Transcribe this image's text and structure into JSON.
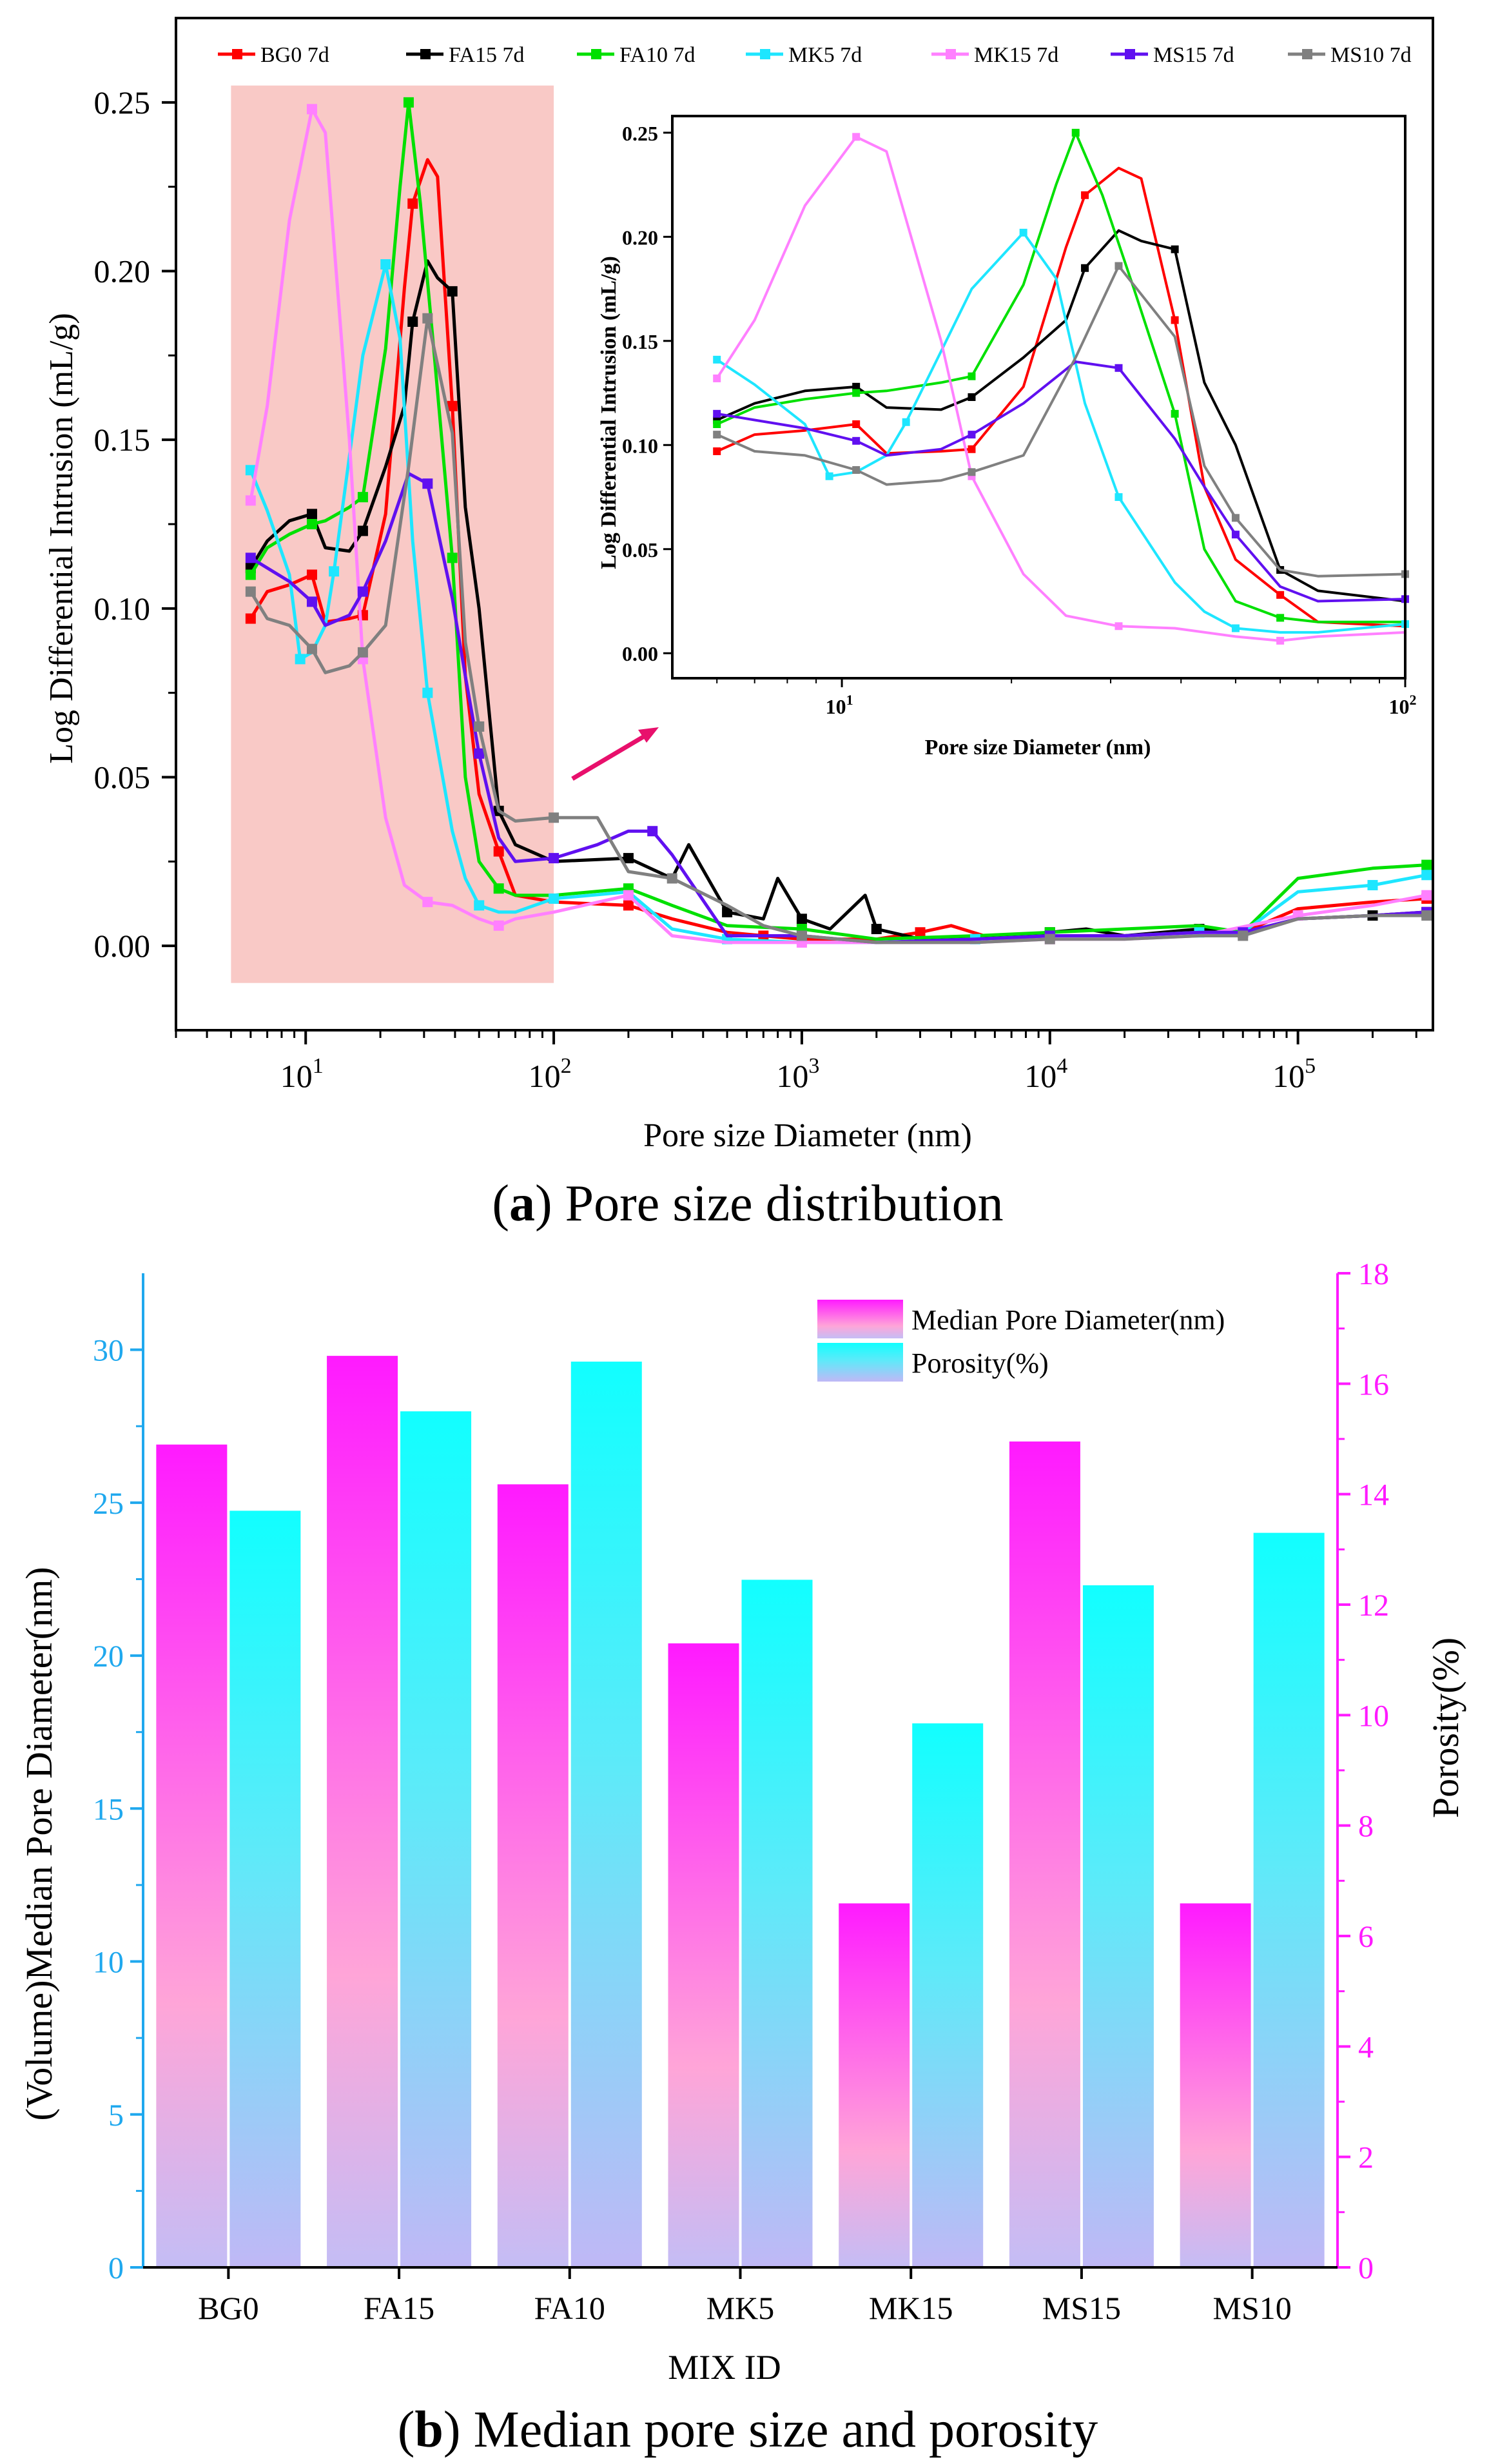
{
  "chart_data": [
    {
      "type": "line",
      "title": "(a) Pore size distribution",
      "caption_letter": "a",
      "caption_text": "Pore size distribution",
      "xlabel": "Pore size Diameter (nm)",
      "ylabel": "Log Differential Intrusion (mL/g)",
      "xscale": "log",
      "xlim": [
        3,
        350000
      ],
      "ylim": [
        -0.025,
        0.275
      ],
      "yticks": [
        "0.00",
        "0.05",
        "0.10",
        "0.15",
        "0.20",
        "0.25"
      ],
      "xticks": [
        {
          "base": "10",
          "exp": "1"
        },
        {
          "base": "10",
          "exp": "2"
        },
        {
          "base": "10",
          "exp": "3"
        },
        {
          "base": "10",
          "exp": "4"
        },
        {
          "base": "10",
          "exp": "5"
        }
      ],
      "highlight_range": {
        "x": [
          5,
          100
        ],
        "y": [
          -0.011,
          0.255
        ]
      },
      "legend": "top",
      "series": [
        {
          "name": "BG0 7d",
          "color": "#ff0000",
          "x": [
            6,
            7,
            8.6,
            10.6,
            12,
            15,
            17,
            21,
            25,
            27,
            31,
            34,
            39,
            44,
            50,
            60,
            70,
            100,
            200,
            300,
            500,
            700,
            1000,
            2000,
            3000,
            4000,
            6000,
            10000,
            20000,
            40000,
            60000,
            100000,
            200000,
            330000
          ],
          "y": [
            0.097,
            0.105,
            0.107,
            0.11,
            0.096,
            0.097,
            0.098,
            0.128,
            0.195,
            0.22,
            0.233,
            0.228,
            0.16,
            0.08,
            0.045,
            0.028,
            0.015,
            0.013,
            0.012,
            0.008,
            0.004,
            0.003,
            0.002,
            0.002,
            0.004,
            0.006,
            0.002,
            0.003,
            0.003,
            0.004,
            0.004,
            0.011,
            0.013,
            0.014
          ]
        },
        {
          "name": "FA15 7d",
          "color": "#000000",
          "x": [
            6,
            7,
            8.6,
            10.6,
            12,
            15,
            17,
            21,
            25,
            27,
            31,
            34,
            39,
            44,
            50,
            60,
            70,
            100,
            200,
            300,
            350,
            500,
            700,
            800,
            1000,
            1300,
            1800,
            2000,
            3000,
            5000,
            10000,
            14000,
            20000,
            40000,
            60000,
            100000,
            200000,
            330000
          ],
          "y": [
            0.112,
            0.12,
            0.126,
            0.128,
            0.118,
            0.117,
            0.123,
            0.142,
            0.16,
            0.185,
            0.203,
            0.198,
            0.194,
            0.13,
            0.1,
            0.04,
            0.03,
            0.025,
            0.026,
            0.02,
            0.03,
            0.01,
            0.008,
            0.02,
            0.008,
            0.005,
            0.015,
            0.005,
            0.002,
            0.002,
            0.004,
            0.005,
            0.003,
            0.005,
            0.004,
            0.008,
            0.009,
            0.01
          ]
        },
        {
          "name": "FA10 7d",
          "color": "#00e000",
          "x": [
            6,
            7,
            8.6,
            10.6,
            12,
            15,
            17,
            21,
            24,
            26,
            29,
            33,
            39,
            44,
            50,
            60,
            70,
            100,
            200,
            300,
            500,
            1000,
            2000,
            5000,
            10000,
            20000,
            40000,
            60000,
            100000,
            200000,
            330000
          ],
          "y": [
            0.11,
            0.118,
            0.122,
            0.125,
            0.126,
            0.13,
            0.133,
            0.177,
            0.225,
            0.25,
            0.22,
            0.175,
            0.115,
            0.05,
            0.025,
            0.017,
            0.015,
            0.015,
            0.017,
            0.012,
            0.006,
            0.005,
            0.002,
            0.003,
            0.004,
            0.005,
            0.006,
            0.004,
            0.02,
            0.023,
            0.024
          ]
        },
        {
          "name": "MK5 7d",
          "color": "#1ee6ff",
          "x": [
            6,
            7,
            8.6,
            9.5,
            10.6,
            12,
            13,
            15,
            17,
            21,
            24,
            27,
            31,
            39,
            44,
            50,
            60,
            70,
            100,
            200,
            300,
            500,
            1000,
            2000,
            5000,
            10000,
            20000,
            40000,
            60000,
            100000,
            200000,
            330000
          ],
          "y": [
            0.141,
            0.129,
            0.11,
            0.085,
            0.087,
            0.095,
            0.111,
            0.145,
            0.175,
            0.202,
            0.18,
            0.12,
            0.075,
            0.034,
            0.02,
            0.012,
            0.01,
            0.01,
            0.014,
            0.016,
            0.005,
            0.002,
            0.001,
            0.001,
            0.002,
            0.003,
            0.003,
            0.004,
            0.004,
            0.016,
            0.018,
            0.021
          ]
        },
        {
          "name": "MK15 7d",
          "color": "#ff80ff",
          "x": [
            6,
            7,
            8.6,
            10.6,
            12,
            15,
            17,
            21,
            25,
            31,
            39,
            50,
            60,
            70,
            100,
            200,
            300,
            500,
            1000,
            2000,
            5000,
            10000,
            20000,
            40000,
            100000,
            200000,
            330000
          ],
          "y": [
            0.132,
            0.16,
            0.215,
            0.248,
            0.241,
            0.15,
            0.085,
            0.038,
            0.018,
            0.013,
            0.012,
            0.008,
            0.006,
            0.008,
            0.01,
            0.015,
            0.003,
            0.001,
            0.001,
            0.001,
            0.001,
            0.002,
            0.002,
            0.003,
            0.009,
            0.012,
            0.015
          ]
        },
        {
          "name": "MS15 7d",
          "color": "#6010f0",
          "x": [
            6,
            7,
            8.6,
            10.6,
            12,
            15,
            17,
            21,
            26,
            31,
            39,
            44,
            50,
            60,
            70,
            100,
            150,
            200,
            250,
            300,
            500,
            1000,
            2000,
            5000,
            10000,
            20000,
            40000,
            60000,
            100000,
            200000,
            330000
          ],
          "y": [
            0.115,
            0.112,
            0.108,
            0.102,
            0.095,
            0.098,
            0.105,
            0.12,
            0.14,
            0.137,
            0.103,
            0.08,
            0.057,
            0.032,
            0.025,
            0.026,
            0.03,
            0.034,
            0.034,
            0.027,
            0.003,
            0.003,
            0.001,
            0.002,
            0.003,
            0.003,
            0.004,
            0.004,
            0.008,
            0.009,
            0.01
          ]
        },
        {
          "name": "MS10 7d",
          "color": "#808080",
          "x": [
            6,
            7,
            8.6,
            10.6,
            12,
            15,
            17,
            21,
            26,
            31,
            39,
            44,
            50,
            60,
            70,
            100,
            150,
            200,
            300,
            500,
            700,
            1000,
            2000,
            5000,
            10000,
            20000,
            40000,
            60000,
            100000,
            200000,
            330000
          ],
          "y": [
            0.105,
            0.097,
            0.095,
            0.088,
            0.081,
            0.083,
            0.087,
            0.095,
            0.142,
            0.186,
            0.152,
            0.09,
            0.065,
            0.04,
            0.037,
            0.038,
            0.038,
            0.022,
            0.02,
            0.012,
            0.006,
            0.003,
            0.001,
            0.001,
            0.002,
            0.002,
            0.003,
            0.003,
            0.008,
            0.009,
            0.009
          ]
        }
      ],
      "inset": {
        "xlabel": "Pore size Diameter (nm)",
        "ylabel": "Log Differential Intrusion (mL/g)",
        "xlim": [
          5,
          100
        ],
        "ylim": [
          -0.012,
          0.258
        ],
        "yticks": [
          "0.00",
          "0.05",
          "0.10",
          "0.15",
          "0.20",
          "0.25"
        ],
        "xticks": [
          {
            "base": "10",
            "exp": "1"
          },
          {
            "base": "10",
            "exp": "2"
          }
        ]
      }
    },
    {
      "type": "bar",
      "title": "(b) Median pore size and porosity",
      "caption_letter": "b",
      "caption_text": "Median pore size and porosity",
      "xlabel": "MIX ID",
      "ylabel_left": "(Volume)Median Pore Diameter(nm)",
      "ylabel_right": "Porosity(%)",
      "categories": [
        "BG0",
        "FA15",
        "FA10",
        "MK5",
        "MK15",
        "MS15",
        "MS10"
      ],
      "ylim_left": [
        0,
        32.5
      ],
      "ylim_right": [
        0,
        18
      ],
      "yticks_left": [
        "0",
        "5",
        "10",
        "15",
        "20",
        "25",
        "30"
      ],
      "yticks_right": [
        "0",
        "2",
        "4",
        "6",
        "8",
        "10",
        "12",
        "14",
        "16",
        "18"
      ],
      "left_axis_color": "#1fa8ee",
      "right_axis_color": "#ff1aff",
      "legend": "top-right",
      "series": [
        {
          "name": "Median Pore Diameter(nm)",
          "axis": "left",
          "color_top": "#ff1aff",
          "color_bottom": "#c4bdf5",
          "values": [
            26.9,
            29.8,
            25.6,
            20.4,
            11.9,
            27.0,
            11.9
          ]
        },
        {
          "name": "Porosity(%)",
          "axis": "right",
          "color_top": "#11ffff",
          "color_bottom": "#c0b8f6",
          "values": [
            13.7,
            15.5,
            16.4,
            12.45,
            9.85,
            12.35,
            13.3
          ]
        }
      ]
    }
  ]
}
